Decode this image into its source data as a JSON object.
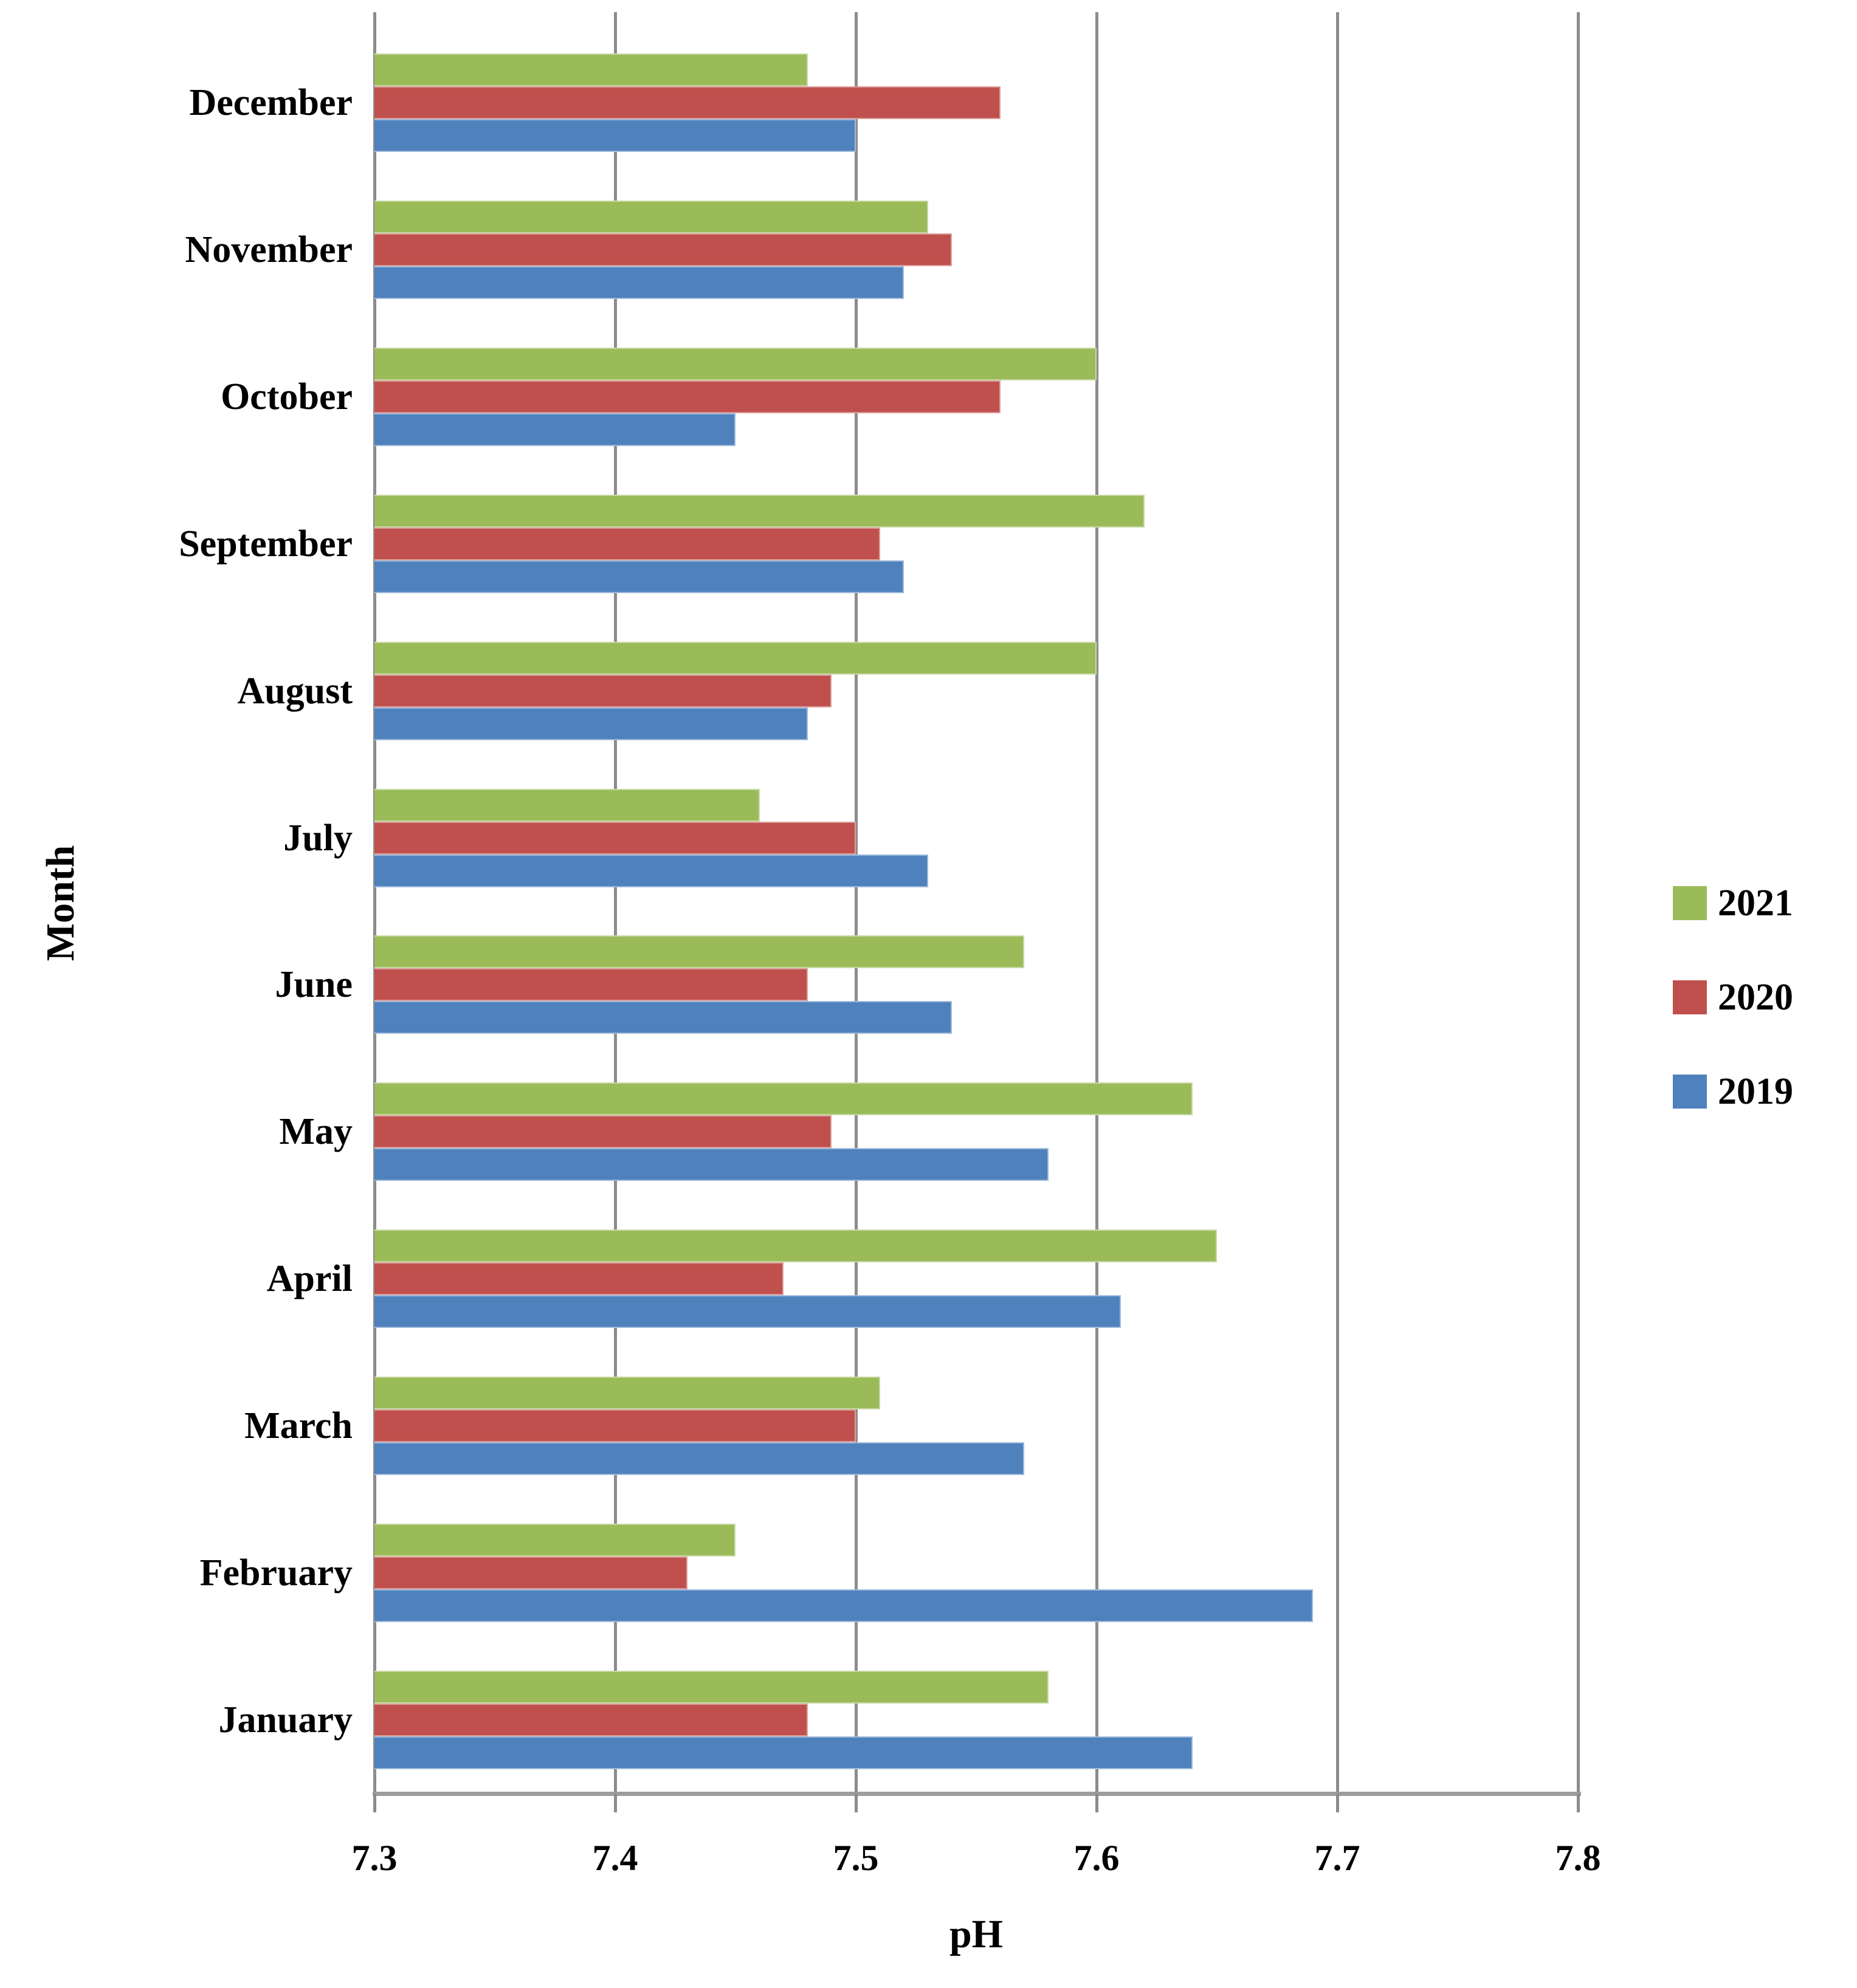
{
  "chart_data": {
    "type": "bar",
    "orientation": "horizontal",
    "title": "",
    "xlabel": "pH",
    "ylabel": "Month",
    "xlim": [
      7.3,
      7.8
    ],
    "xticks": [
      "7.3",
      "7.4",
      "7.5",
      "7.6",
      "7.7",
      "7.8"
    ],
    "grid": true,
    "legend_position": "right",
    "categories": [
      "December",
      "November",
      "October",
      "September",
      "August",
      "July",
      "June",
      "May",
      "April",
      "March",
      "February",
      "January"
    ],
    "series": [
      {
        "name": "2021",
        "color": "#9bbb59",
        "values": [
          7.48,
          7.53,
          7.6,
          7.62,
          7.6,
          7.46,
          7.57,
          7.64,
          7.65,
          7.51,
          7.45,
          7.58
        ]
      },
      {
        "name": "2020",
        "color": "#c0504d",
        "values": [
          7.56,
          7.54,
          7.56,
          7.51,
          7.49,
          7.5,
          7.48,
          7.49,
          7.47,
          7.5,
          7.43,
          7.48
        ]
      },
      {
        "name": "2019",
        "color": "#4f81bd",
        "values": [
          7.5,
          7.52,
          7.45,
          7.52,
          7.48,
          7.53,
          7.54,
          7.58,
          7.61,
          7.57,
          7.69,
          7.64
        ]
      }
    ],
    "style": {
      "gridline_color": "#8c8c8c",
      "axis_line_color": "#9d9d9d",
      "text_color": "#000000",
      "background": "#ffffff"
    }
  }
}
